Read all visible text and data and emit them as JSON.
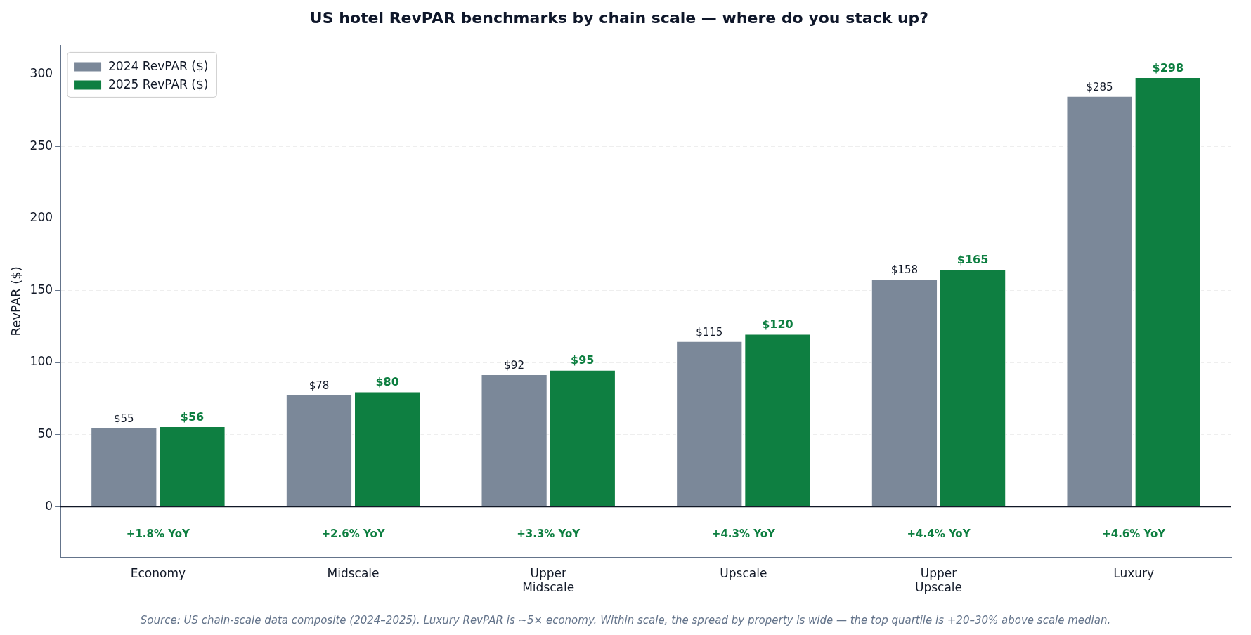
{
  "chart_data": {
    "type": "bar",
    "title": "US hotel RevPAR benchmarks by chain scale — where do you stack up?",
    "ylabel": "RevPAR ($)",
    "categories": [
      "Economy",
      "Midscale",
      "Upper\nMidscale",
      "Upscale",
      "Upper\nUpscale",
      "Luxury"
    ],
    "series": [
      {
        "name": "2024 RevPAR ($)",
        "color": "#7b8899",
        "values": [
          55,
          78,
          92,
          115,
          158,
          285
        ],
        "value_labels": [
          "$55",
          "$78",
          "$92",
          "$115",
          "$158",
          "$285"
        ]
      },
      {
        "name": "2025 RevPAR ($)",
        "color": "#0e7f41",
        "values": [
          56,
          80,
          95,
          120,
          165,
          298
        ],
        "value_labels": [
          "$56",
          "$80",
          "$95",
          "$120",
          "$165",
          "$298"
        ]
      }
    ],
    "ylim": [
      -35,
      320
    ],
    "yticks": [
      0,
      50,
      100,
      150,
      200,
      250,
      300
    ],
    "grid": "y",
    "legend": "top left",
    "ref_lines": [
      {
        "axis": "y",
        "value": 0,
        "color": "#111827"
      }
    ],
    "annotations": [
      "+1.8% YoY",
      "+2.6% YoY",
      "+3.3% YoY",
      "+4.3% YoY",
      "+4.4% YoY",
      "+4.6% YoY",
      "Source: US chain-scale data composite (2024–2025). Luxury RevPAR is ~5× economy. Within scale, the spread by property is wide — the top quartile is +20–30% above scale median."
    ]
  }
}
